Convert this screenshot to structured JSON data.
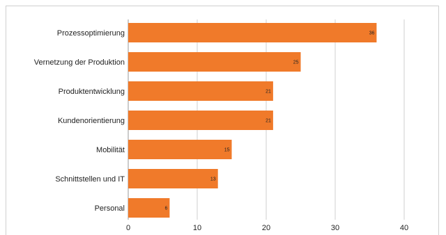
{
  "chart_data": {
    "type": "bar",
    "orientation": "horizontal",
    "categories": [
      "Prozessoptimierung",
      "Vernetzung der Produktion",
      "Produktentwicklung",
      "Kundenorientierung",
      "Mobilität",
      "Schnittstellen und IT",
      "Personal"
    ],
    "values": [
      36,
      25,
      21,
      21,
      15,
      13,
      6
    ],
    "xlim": [
      0,
      40
    ],
    "xticks": [
      0,
      10,
      20,
      30,
      40
    ],
    "grid": true,
    "bar_color": "#f07a2a",
    "title": "",
    "xlabel": "",
    "ylabel": ""
  }
}
